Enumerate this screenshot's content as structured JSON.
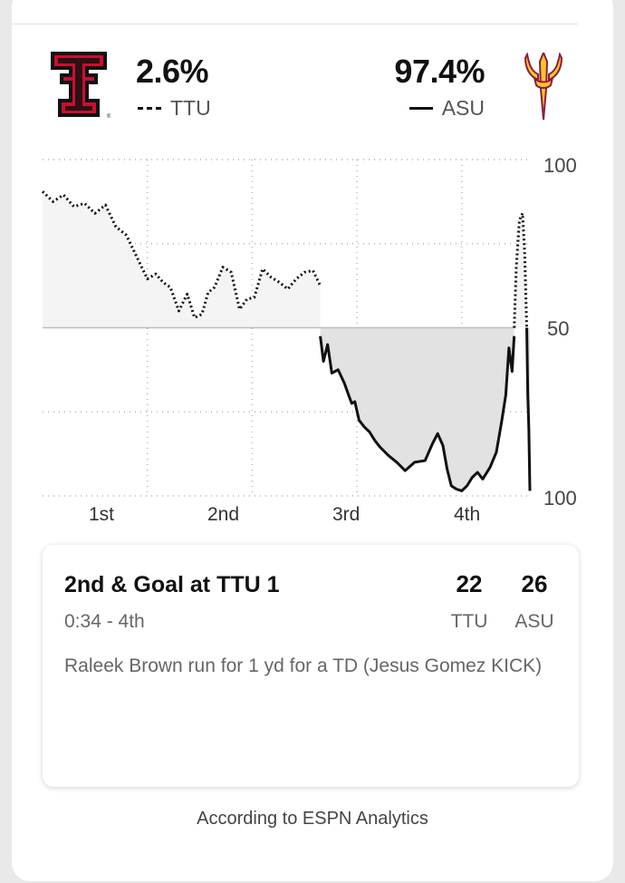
{
  "header": {
    "away": {
      "team": "TTU",
      "pct": "2.6%",
      "logo": "texas-tech-logo",
      "line_style": "dashed",
      "color": "#cc0000"
    },
    "home": {
      "team": "ASU",
      "pct": "97.4%",
      "logo": "arizona-state-pitchfork-logo",
      "line_style": "solid",
      "color": "#8c1d40"
    }
  },
  "chart_data": {
    "type": "line",
    "title": "",
    "xlabel": "",
    "ylabel": "",
    "x_tick_labels": [
      "1st",
      "2nd",
      "3rd",
      "4th"
    ],
    "y_tick_labels": [
      "100",
      "50",
      "100"
    ],
    "ylim": [
      -100,
      100
    ],
    "y_meaning": "positive = TTU win probability above 50, negative = ASU win probability above 50",
    "grid": true,
    "series": [
      {
        "name": "TTU",
        "style": "dashed",
        "x": [
          0,
          0.1,
          0.2,
          0.3,
          0.4,
          0.5,
          0.6,
          0.7,
          0.8,
          0.9,
          1.0,
          1.08,
          1.15,
          1.22,
          1.3,
          1.38,
          1.45,
          1.52,
          1.58,
          1.64,
          1.72,
          1.8,
          1.88,
          1.95,
          2.02,
          2.1,
          2.18,
          2.26,
          2.34,
          2.42,
          2.5,
          2.58,
          2.65
        ],
        "y": [
          81,
          75,
          79,
          72,
          74,
          68,
          73,
          60,
          55,
          42,
          29,
          32,
          27,
          24,
          10,
          20,
          6,
          8,
          21,
          24,
          36,
          33,
          11,
          17,
          18,
          35,
          30,
          27,
          23,
          29,
          33,
          34,
          25
        ]
      },
      {
        "name": "ASU",
        "style": "solid",
        "x": [
          2.65,
          2.68,
          2.72,
          2.76,
          2.82,
          2.88,
          2.92,
          2.95,
          2.98,
          3.02,
          3.07,
          3.12,
          3.17,
          3.22,
          3.3,
          3.38,
          3.46,
          3.55,
          3.65,
          3.72,
          3.77,
          3.82,
          3.86,
          3.9,
          3.95,
          4.0,
          4.05,
          4.1,
          4.15,
          4.2,
          4.27,
          4.33,
          4.38,
          4.42,
          4.45,
          4.48,
          4.5
        ],
        "y": [
          -5,
          -20,
          -10,
          -27,
          -25,
          -33,
          -40,
          -45,
          -44,
          -55,
          -59,
          -62,
          -67,
          -71,
          -76,
          -80,
          -85,
          -80,
          -79,
          -69,
          -63,
          -70,
          -84,
          -94,
          -96,
          -97,
          -94,
          -89,
          -86,
          -90,
          -83,
          -74,
          -56,
          -40,
          -12,
          -26,
          -5
        ]
      },
      {
        "name": "TTU",
        "style": "dashed",
        "x": [
          4.5,
          4.52,
          4.55,
          4.58,
          4.6,
          4.62
        ],
        "y": [
          0,
          36,
          64,
          68,
          45,
          0
        ]
      },
      {
        "name": "ASU",
        "style": "solid",
        "x": [
          4.62,
          4.63,
          4.64,
          4.65
        ],
        "y": [
          0,
          -40,
          -60,
          -97
        ]
      }
    ]
  },
  "play": {
    "title": "2nd & Goal at TTU 1",
    "time": "0:34 - 4th",
    "description": "Raleek Brown run for 1 yd for a TD (Jesus Gomez KICK)",
    "away_score": "22",
    "home_score": "26",
    "away_team": "TTU",
    "home_team": "ASU"
  },
  "footer": "According to ESPN Analytics"
}
